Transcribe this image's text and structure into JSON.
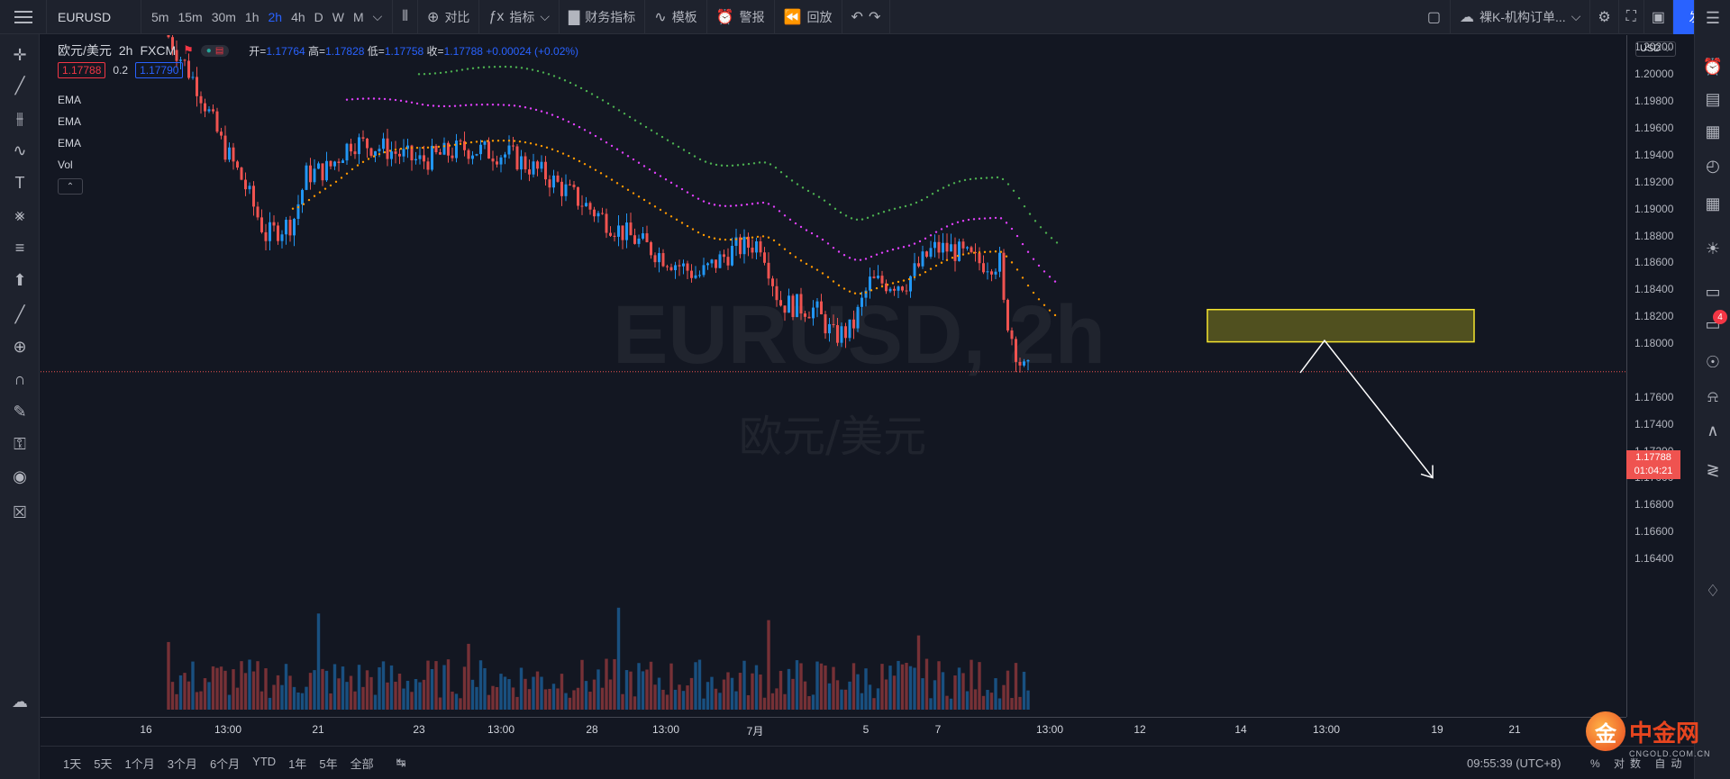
{
  "topbar": {
    "symbol": "EURUSD",
    "intervals": [
      {
        "label": "5m",
        "active": false
      },
      {
        "label": "15m",
        "active": false
      },
      {
        "label": "30m",
        "active": false
      },
      {
        "label": "1h",
        "active": false
      },
      {
        "label": "2h",
        "active": true
      },
      {
        "label": "4h",
        "active": false
      },
      {
        "label": "D",
        "active": false
      },
      {
        "label": "W",
        "active": false
      },
      {
        "label": "M",
        "active": false
      }
    ],
    "compare_label": "对比",
    "indicators_label": "指标",
    "financials_label": "财务指标",
    "templates_label": "模板",
    "alert_label": "警报",
    "replay_label": "回放",
    "layout_name": "裸K-机构订单...",
    "publish_label": "发表"
  },
  "legend": {
    "symbol_name": "欧元/美元",
    "interval": "2h",
    "source": "FXCM",
    "ohlc": {
      "open_label": "开=",
      "open": "1.17764",
      "high_label": "高=",
      "high": "1.17828",
      "low_label": "低=",
      "low": "1.17758",
      "close_label": "收=",
      "close": "1.17788",
      "change": "+0.00024 (+0.02%)"
    },
    "bid": "1.17788",
    "spread": "0.2",
    "ask": "1.17790",
    "indicators": [
      "EMA",
      "EMA",
      "EMA",
      "Vol"
    ]
  },
  "watermark": {
    "symbol": "EURUSD, 2h",
    "name": "欧元/美元"
  },
  "price_axis": {
    "currency": "USD",
    "labels": [
      "1.20200",
      "1.20000",
      "1.19800",
      "1.19600",
      "1.19400",
      "1.19200",
      "1.19000",
      "1.18800",
      "1.18600",
      "1.18400",
      "1.18200",
      "1.18000",
      "1.17600",
      "1.17400",
      "1.17200",
      "1.17000",
      "1.16800",
      "1.16600",
      "1.16400"
    ],
    "current_price": "1.17788",
    "countdown": "01:04:21"
  },
  "time_axis": {
    "labels": [
      "16",
      "13:00",
      "21",
      "23",
      "13:00",
      "28",
      "13:00",
      "7月",
      "5",
      "7",
      "13:00",
      "12",
      "14",
      "13:00",
      "19",
      "21"
    ]
  },
  "bottom": {
    "ranges": [
      "1天",
      "5天",
      "1个月",
      "3个月",
      "6个月",
      "YTD",
      "1年",
      "5年",
      "全部"
    ],
    "clock": "09:55:39 (UTC+8)",
    "options": "% 对数 自动"
  },
  "brand": {
    "logo_char": "金",
    "name": "中金网",
    "url": "CNGOLD.COM.CN"
  },
  "colors": {
    "up": "#2196f3",
    "down": "#ef5350",
    "ema_fast": "#ff9800",
    "ema_mid": "#e040fb",
    "ema_slow": "#4caf50",
    "zone_fill": "#6b6a1e",
    "zone_border": "#f5e52f",
    "accent": "#2962ff"
  },
  "chart_data": {
    "type": "candlestick",
    "price_range": [
      1.163,
      1.2025
    ],
    "current_price": 1.17788,
    "zone": {
      "from_price": 1.1801,
      "to_price": 1.1825
    },
    "projection": {
      "from_price": 1.1778,
      "peak_price": 1.1802,
      "target_price": 1.17
    }
  }
}
